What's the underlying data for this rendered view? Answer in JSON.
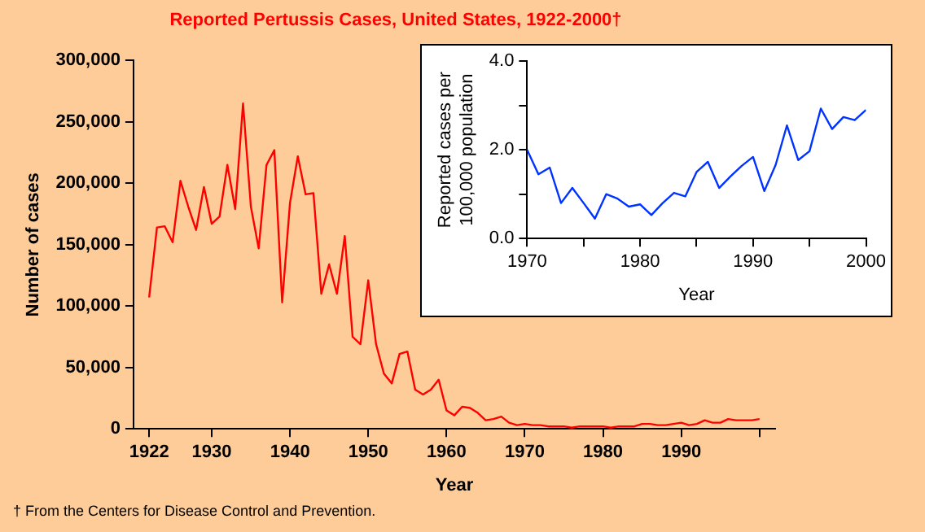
{
  "chart_data": [
    {
      "type": "line",
      "title": "Reported Pertussis Cases, United States, 1922-2000†",
      "xlabel": "Year",
      "ylabel": "Number of cases",
      "x": [
        1922,
        1923,
        1924,
        1925,
        1926,
        1927,
        1928,
        1929,
        1930,
        1931,
        1932,
        1933,
        1934,
        1935,
        1936,
        1937,
        1938,
        1939,
        1940,
        1941,
        1942,
        1943,
        1944,
        1945,
        1946,
        1947,
        1948,
        1949,
        1950,
        1951,
        1952,
        1953,
        1954,
        1955,
        1956,
        1957,
        1958,
        1959,
        1960,
        1961,
        1962,
        1963,
        1964,
        1965,
        1966,
        1967,
        1968,
        1969,
        1970,
        1971,
        1972,
        1973,
        1974,
        1975,
        1976,
        1977,
        1978,
        1979,
        1980,
        1981,
        1982,
        1983,
        1984,
        1985,
        1986,
        1987,
        1988,
        1989,
        1990,
        1991,
        1992,
        1993,
        1994,
        1995,
        1996,
        1997,
        1998,
        1999,
        2000
      ],
      "series": [
        {
          "color": "#ff0000",
          "values": [
            107000,
            164000,
            165000,
            152000,
            202000,
            181000,
            162000,
            197000,
            167000,
            173000,
            215000,
            179000,
            265000,
            181000,
            147000,
            215000,
            227000,
            103000,
            184000,
            222000,
            191000,
            192000,
            110000,
            134000,
            110000,
            157000,
            75000,
            69000,
            121000,
            69000,
            45000,
            37000,
            61000,
            63000,
            32000,
            28000,
            32000,
            40000,
            15000,
            11000,
            18000,
            17000,
            13000,
            7000,
            8000,
            10000,
            5000,
            3000,
            4000,
            3000,
            3000,
            2000,
            2000,
            2000,
            1000,
            2000,
            2000,
            2000,
            2000,
            1000,
            2000,
            2000,
            2000,
            4000,
            4000,
            3000,
            3000,
            4000,
            5000,
            3000,
            4000,
            7000,
            5000,
            5000,
            8000,
            7000,
            7000,
            7000,
            8000
          ]
        }
      ],
      "xlim": [
        1920,
        2002
      ],
      "xticks": [
        1922,
        1930,
        1940,
        1950,
        1960,
        1970,
        1980,
        1990,
        {
          "value": 2000,
          "label": null
        }
      ],
      "ylim": [
        0,
        300000
      ],
      "yticks": [
        0,
        {
          "value": 50000,
          "label": "50,000"
        },
        {
          "value": 100000,
          "label": "100,000"
        },
        {
          "value": 150000,
          "label": "150,000"
        },
        {
          "value": 200000,
          "label": "200,000"
        },
        {
          "value": 250000,
          "label": "250,000"
        },
        {
          "value": 300000,
          "label": "300,000"
        }
      ],
      "annotations": [
        "† From the Centers for Disease Control and Prevention."
      ]
    },
    {
      "type": "line",
      "xlabel": "Year",
      "ylabel": "Reported cases per 100,000 population",
      "x": [
        1970,
        1971,
        1972,
        1973,
        1974,
        1975,
        1976,
        1977,
        1978,
        1979,
        1980,
        1981,
        1982,
        1983,
        1984,
        1985,
        1986,
        1987,
        1988,
        1989,
        1990,
        1991,
        1992,
        1993,
        1994,
        1995,
        1996,
        1997,
        1998,
        1999,
        2000
      ],
      "series": [
        {
          "color": "#0033ff",
          "values": [
            2.0,
            1.45,
            1.6,
            0.8,
            1.14,
            0.8,
            0.45,
            1.0,
            0.9,
            0.72,
            0.77,
            0.53,
            0.8,
            1.03,
            0.95,
            1.5,
            1.73,
            1.14,
            1.4,
            1.64,
            1.84,
            1.07,
            1.66,
            2.55,
            1.77,
            1.97,
            2.93,
            2.47,
            2.74,
            2.67,
            2.9
          ]
        }
      ],
      "xlim": [
        1970,
        2000
      ],
      "xticks": [
        1970,
        {
          "value": 1975,
          "label": null
        },
        1980,
        {
          "value": 1985,
          "label": null
        },
        1990,
        {
          "value": 1995,
          "label": null
        },
        2000
      ],
      "ylim": [
        0,
        4
      ],
      "yticks": [
        {
          "value": 0,
          "label": "0.0"
        },
        {
          "value": 1,
          "label": null
        },
        {
          "value": 2,
          "label": "2.0"
        },
        {
          "value": 3,
          "label": null
        },
        {
          "value": 4,
          "label": "4.0"
        }
      ]
    }
  ]
}
